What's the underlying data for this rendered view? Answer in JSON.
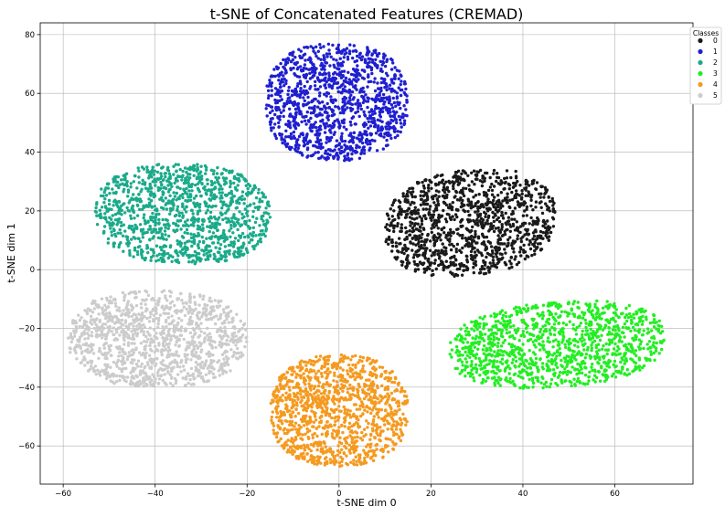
{
  "chart_data": {
    "type": "scatter",
    "title": "t-SNE of Concatenated Features (CREMAD)",
    "xlabel": "t-SNE dim 0",
    "ylabel": "t-SNE dim 1",
    "xlim": [
      -65,
      77
    ],
    "ylim": [
      -73,
      84
    ],
    "xticks": [
      -60,
      -40,
      -20,
      0,
      20,
      40,
      60
    ],
    "yticks": [
      -60,
      -40,
      -20,
      0,
      20,
      40,
      60,
      80
    ],
    "grid": true,
    "legend": {
      "title": "Classes",
      "placement": "top-right"
    },
    "series": [
      {
        "name": "0",
        "color": "#1a1a1a",
        "points": 1200,
        "cluster": {
          "center": [
            33,
            15
          ],
          "spread": [
            14,
            10
          ],
          "xrange": [
            10,
            47
          ],
          "yrange": [
            -2,
            34
          ],
          "tilt": 0.4
        }
      },
      {
        "name": "1",
        "color": "#1f1fd0",
        "points": 1200,
        "cluster": {
          "center": [
            0,
            57
          ],
          "spread": [
            15,
            19
          ],
          "xrange": [
            -16,
            15
          ],
          "yrange": [
            37,
            77
          ],
          "tilt": 0
        }
      },
      {
        "name": "2",
        "color": "#1aaa8a",
        "points": 1200,
        "cluster": {
          "center": [
            -35,
            20
          ],
          "spread": [
            18,
            14
          ],
          "xrange": [
            -53,
            -15
          ],
          "yrange": [
            2,
            36
          ],
          "tilt": -0.1
        }
      },
      {
        "name": "3",
        "color": "#22ee22",
        "points": 1200,
        "cluster": {
          "center": [
            47,
            -25
          ],
          "spread": [
            23,
            14
          ],
          "xrange": [
            24,
            71
          ],
          "yrange": [
            -40,
            -11
          ],
          "tilt": 0.3
        }
      },
      {
        "name": "4",
        "color": "#f59a1f",
        "points": 1200,
        "cluster": {
          "center": [
            1,
            -50
          ],
          "spread": [
            15,
            17
          ],
          "xrange": [
            -15,
            15
          ],
          "yrange": [
            -67,
            -29
          ],
          "tilt": 0
        }
      },
      {
        "name": "5",
        "color": "#cccccc",
        "points": 1200,
        "cluster": {
          "center": [
            -40,
            -24
          ],
          "spread": [
            20,
            15
          ],
          "xrange": [
            -59,
            -20
          ],
          "yrange": [
            -40,
            -7
          ],
          "tilt": 0
        }
      }
    ]
  }
}
